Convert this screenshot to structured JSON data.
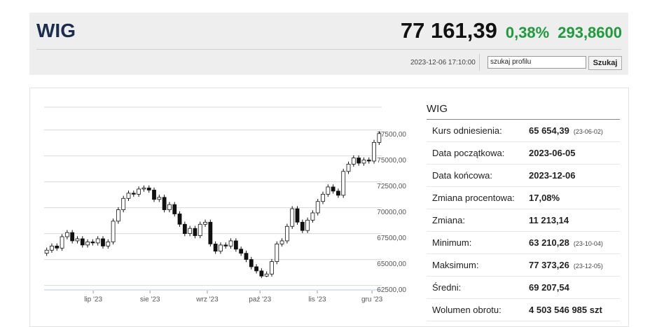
{
  "header": {
    "title": "WIG",
    "price": "77 161,39",
    "change_pct": "0,38%",
    "change_abs": "293,8600",
    "timestamp": "2023-12-06 17:10:00",
    "search_placeholder": "szukaj profilu",
    "search_button": "Szukaj"
  },
  "chart_data": {
    "type": "candlestick",
    "up_color": "#ffffff",
    "down_color": "#111111",
    "open": [
      65600,
      65900,
      66300,
      66100,
      67200,
      67600,
      66800,
      67000,
      66400,
      66700,
      66600,
      67000,
      66300,
      66700,
      68700,
      69800,
      70900,
      71400,
      71300,
      71800,
      71900,
      71700,
      70800,
      71000,
      69800,
      70300,
      69400,
      68400,
      67500,
      68000,
      67300,
      68400,
      68600,
      66500,
      65800,
      66400,
      66300,
      66800,
      66000,
      65600,
      65000,
      64300,
      63900,
      63400,
      63600,
      64800,
      66500,
      66800,
      68200,
      69900,
      68600,
      67800,
      68800,
      69500,
      70600,
      71300,
      72000,
      71600,
      71200,
      73500,
      74200,
      74800,
      74300,
      74600,
      74500,
      76300
    ],
    "high": [
      66150,
      66550,
      66550,
      67450,
      67850,
      67850,
      67250,
      67250,
      66950,
      66950,
      67250,
      67250,
      66950,
      68950,
      70050,
      71150,
      71650,
      71650,
      72050,
      72150,
      72150,
      71950,
      71250,
      71250,
      70550,
      70550,
      69650,
      68650,
      68250,
      68250,
      68650,
      68850,
      68850,
      66750,
      66650,
      66650,
      67050,
      67050,
      66250,
      65850,
      65250,
      64550,
      64150,
      63850,
      65050,
      66750,
      67050,
      68450,
      70150,
      70150,
      68850,
      69050,
      69750,
      70850,
      71550,
      72250,
      72250,
      71850,
      73750,
      74450,
      75050,
      75050,
      74850,
      74850,
      76550,
      77373
    ],
    "low": [
      65350,
      65650,
      65850,
      65850,
      66950,
      66550,
      66550,
      66150,
      66150,
      66350,
      66350,
      66050,
      66050,
      66450,
      68450,
      69550,
      70650,
      71050,
      71050,
      71550,
      71450,
      70550,
      70550,
      69550,
      69550,
      69150,
      68150,
      67250,
      67250,
      67050,
      67050,
      68150,
      66250,
      65550,
      65550,
      66050,
      66050,
      65750,
      65350,
      64750,
      64050,
      63650,
      63210,
      63300,
      63350,
      64550,
      66250,
      66550,
      67950,
      68350,
      67550,
      67550,
      68550,
      69250,
      70350,
      71050,
      71350,
      70950,
      70950,
      73250,
      73950,
      74050,
      74050,
      74250,
      74250,
      76050
    ],
    "close": [
      65900,
      66300,
      66100,
      67200,
      67600,
      66800,
      67000,
      66400,
      66700,
      66600,
      67000,
      66300,
      66700,
      68700,
      69800,
      70900,
      71400,
      71300,
      71800,
      71900,
      71700,
      70800,
      71000,
      69800,
      70300,
      69400,
      68400,
      67500,
      68000,
      67300,
      68400,
      68600,
      66500,
      65800,
      66400,
      66300,
      66800,
      66000,
      65600,
      65000,
      64300,
      63900,
      63400,
      63600,
      64800,
      66500,
      66800,
      68200,
      69900,
      68600,
      67800,
      68800,
      69500,
      70600,
      71300,
      72000,
      71600,
      71200,
      73500,
      74200,
      74800,
      74300,
      74600,
      74500,
      76300,
      77150
    ],
    "xlim": [
      0,
      66
    ],
    "xticks": [
      {
        "value": 9.6,
        "label": "lip '23"
      },
      {
        "value": 20.7,
        "label": "sie '23"
      },
      {
        "value": 31.9,
        "label": "wrz '23"
      },
      {
        "value": 42.2,
        "label": "paź '23"
      },
      {
        "value": 53.4,
        "label": "lis '23"
      },
      {
        "value": 64.1,
        "label": "gru '23"
      }
    ],
    "ylim": [
      62000,
      79500
    ],
    "yticks": [
      {
        "value": 62500,
        "label": "62500,00"
      },
      {
        "value": 65000,
        "label": "65000,00"
      },
      {
        "value": 67500,
        "label": "67500,00"
      },
      {
        "value": 70000,
        "label": "70000,00"
      },
      {
        "value": 72500,
        "label": "72500,00"
      },
      {
        "value": 75000,
        "label": "75000,00"
      },
      {
        "value": 77500,
        "label": "77500,00"
      }
    ],
    "grid": true
  },
  "table": {
    "title": "WIG",
    "rows": [
      {
        "label": "Kurs odniesienia:",
        "value": "65 654,39",
        "date": "(23-06-02)"
      },
      {
        "label": "Data początkowa:",
        "value": "2023-06-05"
      },
      {
        "label": "Data końcowa:",
        "value": "2023-12-06"
      },
      {
        "label": "Zmiana procentowa:",
        "value": "17,08%"
      },
      {
        "label": "Zmiana:",
        "value": "11 213,14"
      },
      {
        "label": "Minimum:",
        "value": "63 210,28",
        "date": "(23-10-04)"
      },
      {
        "label": "Maksimum:",
        "value": "77 373,26",
        "date": "(23-12-05)"
      },
      {
        "label": "Średni:",
        "value": "69 207,54"
      },
      {
        "label": "Wolumen obrotu:",
        "value": "4 503 546 985 szt"
      }
    ]
  }
}
